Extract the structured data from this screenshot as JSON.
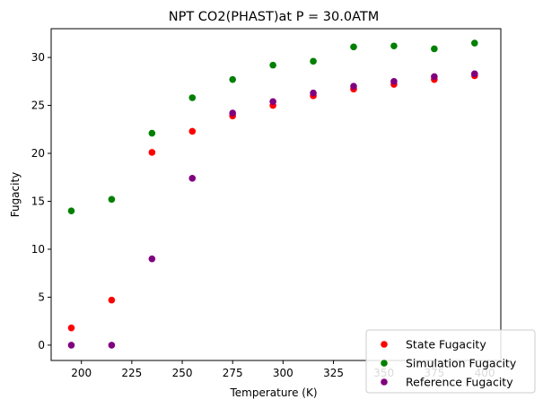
{
  "chart_data": {
    "type": "scatter",
    "title": "NPT CO2(PHAST)at P = 30.0ATM",
    "xlabel": "Temperature (K)",
    "ylabel": "Fugacity",
    "xlim": [
      185,
      408
    ],
    "ylim": [
      -1.6,
      33.0
    ],
    "xticks": [
      200,
      225,
      250,
      275,
      300,
      325,
      350,
      375,
      400
    ],
    "yticks": [
      0,
      5,
      10,
      15,
      20,
      25,
      30
    ],
    "grid": false,
    "legend_position": "bottom-right",
    "x": [
      195,
      215,
      235,
      255,
      275,
      295,
      315,
      335,
      355,
      375,
      395
    ],
    "series": [
      {
        "name": "State Fugacity",
        "color": "#ff0000",
        "values": [
          1.8,
          4.7,
          20.1,
          22.3,
          23.9,
          25.0,
          26.0,
          26.7,
          27.2,
          27.7,
          28.1
        ]
      },
      {
        "name": "Simulation Fugacity",
        "color": "#008000",
        "values": [
          14.0,
          15.2,
          22.1,
          25.8,
          27.7,
          29.2,
          29.6,
          31.1,
          31.2,
          30.9,
          31.5
        ]
      },
      {
        "name": "Reference Fugacity",
        "color": "#800080",
        "values": [
          0.0,
          0.0,
          9.0,
          17.4,
          24.2,
          25.4,
          26.3,
          27.0,
          27.5,
          28.0,
          28.3
        ]
      }
    ]
  }
}
